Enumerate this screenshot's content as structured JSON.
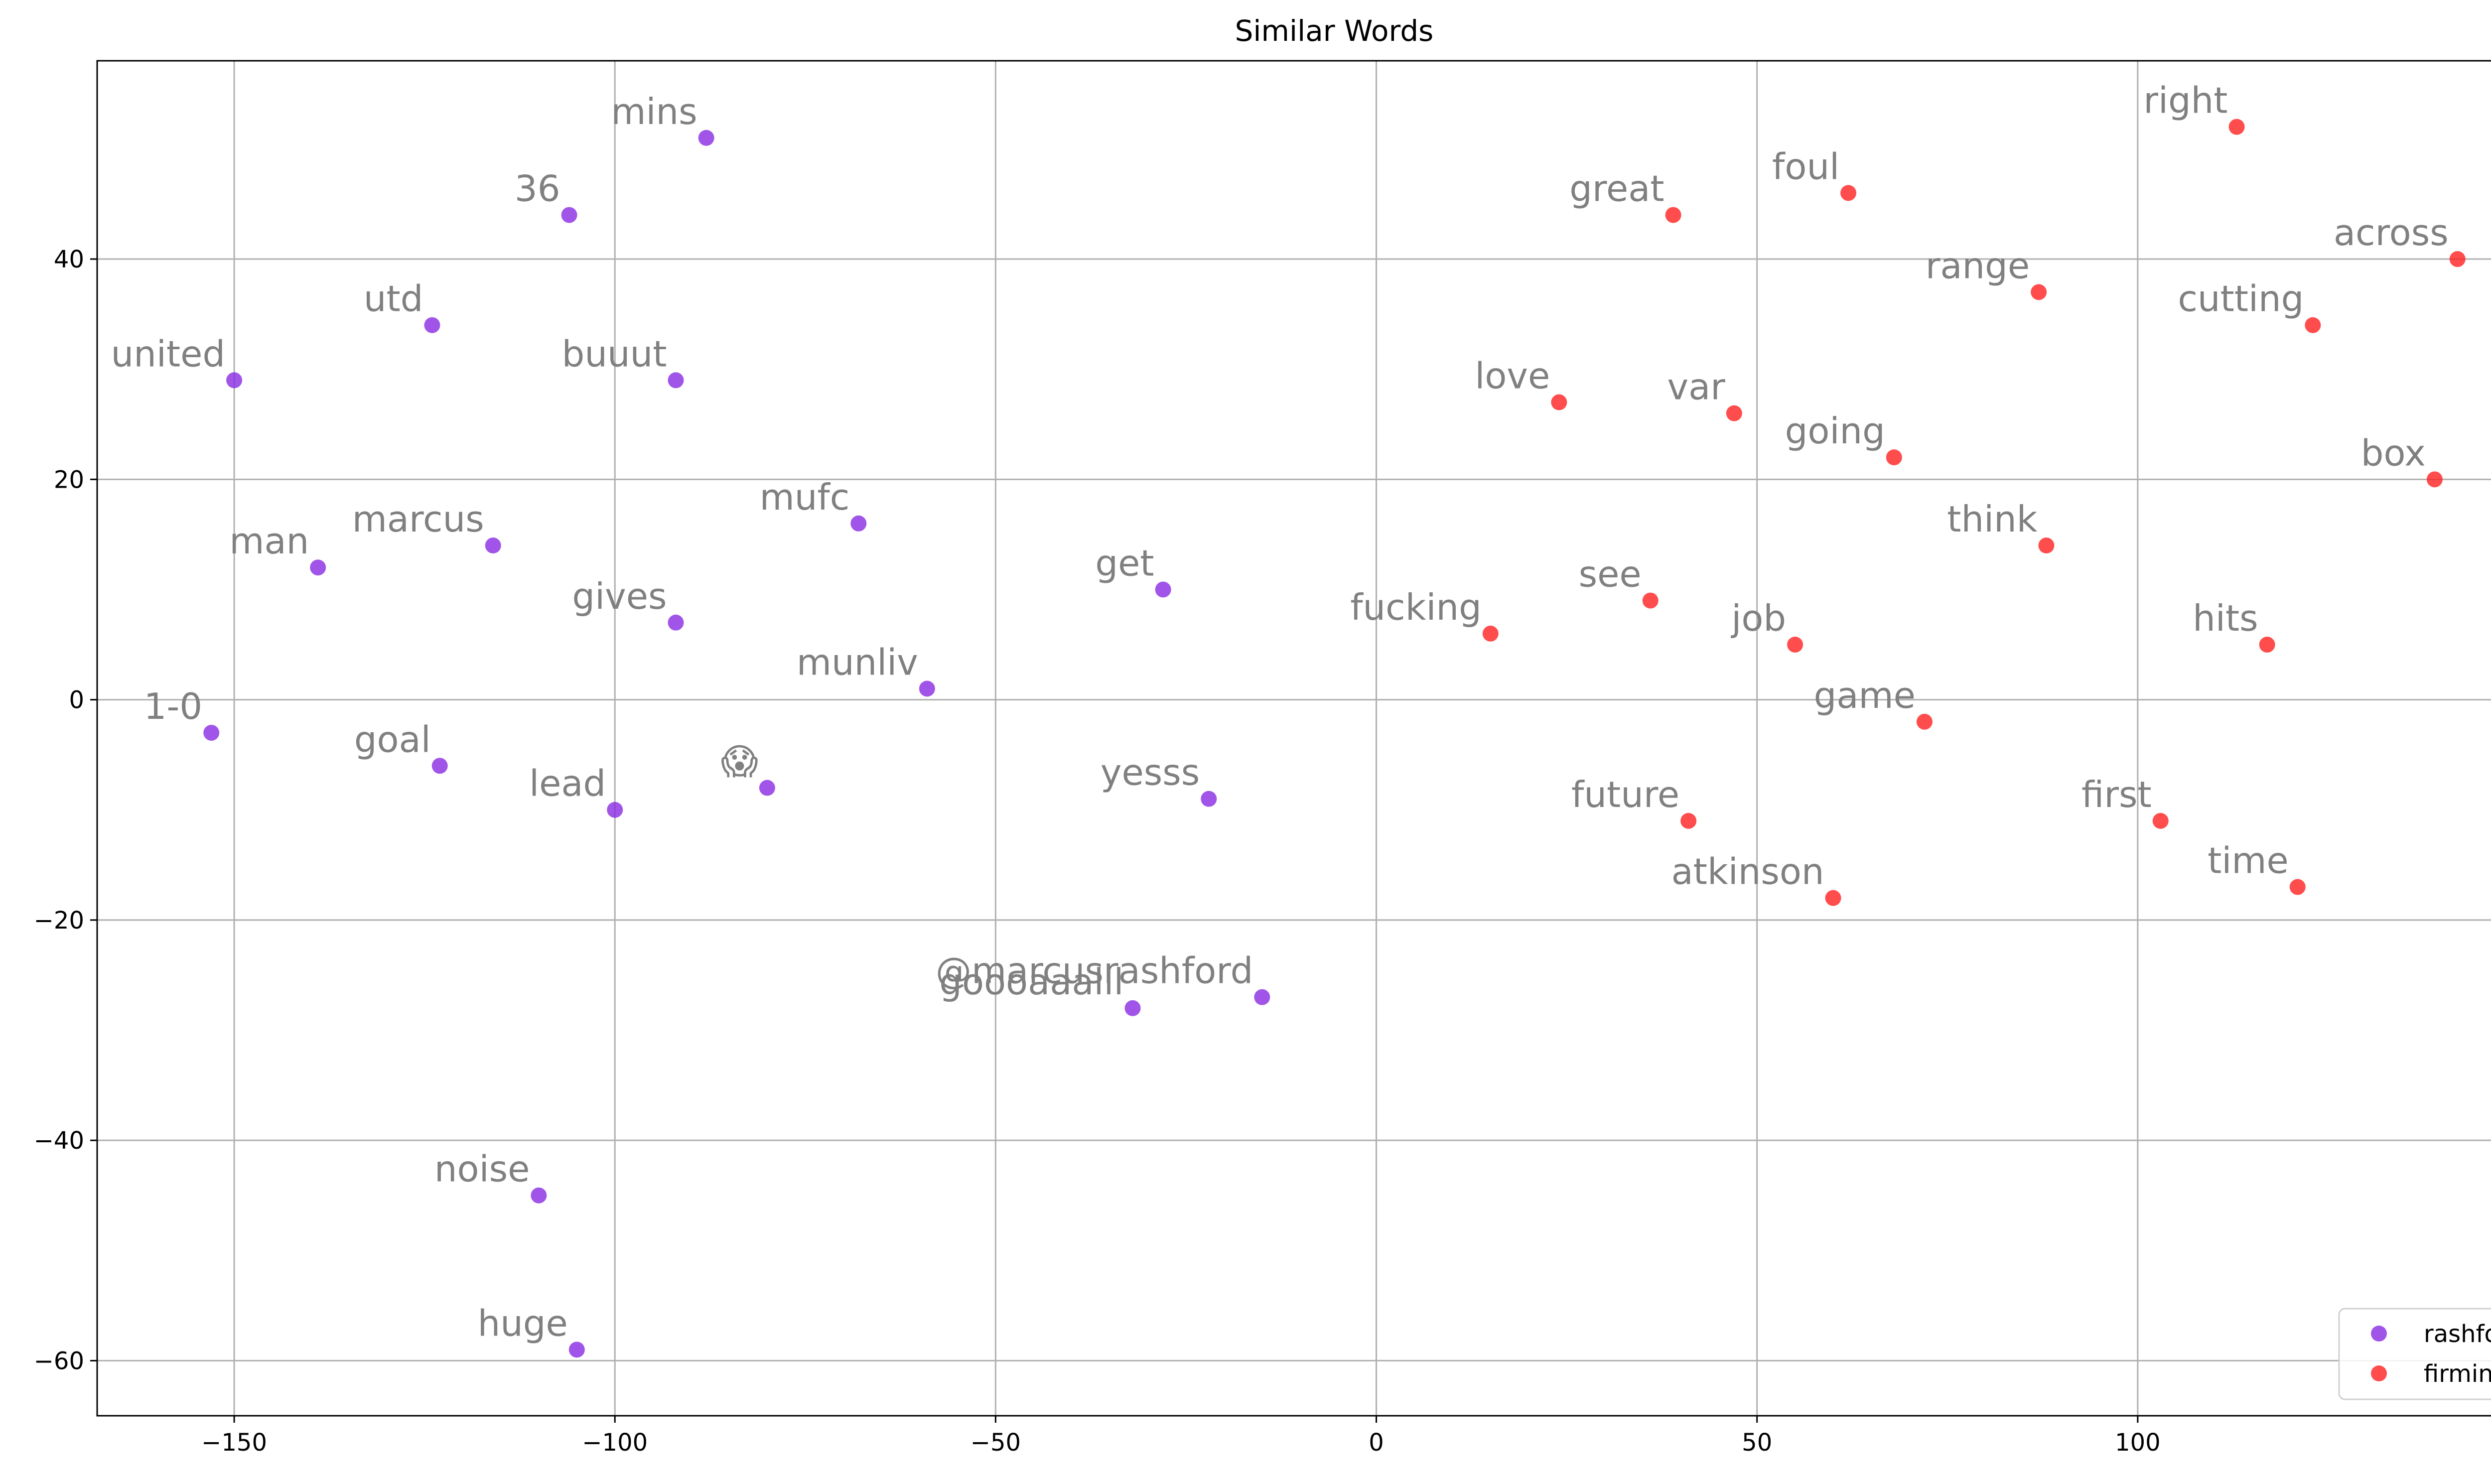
{
  "chart_data": {
    "type": "scatter",
    "title": "Similar Words",
    "xlabel": "",
    "ylabel": "",
    "xlim": [
      -168,
      157
    ],
    "ylim": [
      -65,
      58
    ],
    "xticks": [
      -150,
      -100,
      -50,
      0,
      50,
      100,
      150
    ],
    "yticks": [
      -60,
      -40,
      -20,
      0,
      20,
      40
    ],
    "grid": true,
    "legend_position": "lower-right",
    "series": [
      {
        "name": "rashford",
        "color": "#8a2be2",
        "points": [
          {
            "label": "mins",
            "x": -88,
            "y": 51
          },
          {
            "label": "36",
            "x": -106,
            "y": 44
          },
          {
            "label": "utd",
            "x": -124,
            "y": 34
          },
          {
            "label": "united",
            "x": -150,
            "y": 29
          },
          {
            "label": "buuut",
            "x": -92,
            "y": 29
          },
          {
            "label": "mufc",
            "x": -68,
            "y": 16
          },
          {
            "label": "marcus",
            "x": -116,
            "y": 14
          },
          {
            "label": "man",
            "x": -139,
            "y": 12
          },
          {
            "label": "get",
            "x": -28,
            "y": 10
          },
          {
            "label": "gives",
            "x": -92,
            "y": 7
          },
          {
            "label": "munliv",
            "x": -59,
            "y": 1
          },
          {
            "label": "1-0",
            "x": -153,
            "y": -3
          },
          {
            "label": "goal",
            "x": -123,
            "y": -6
          },
          {
            "label": "😱",
            "x": -80,
            "y": -8
          },
          {
            "label": "yesss",
            "x": -22,
            "y": -9
          },
          {
            "label": "lead",
            "x": -100,
            "y": -10
          },
          {
            "label": "@marcusrashford",
            "x": -15,
            "y": -27
          },
          {
            "label": "goooaaalll",
            "x": -32,
            "y": -28
          },
          {
            "label": "noise",
            "x": -110,
            "y": -45
          },
          {
            "label": "huge",
            "x": -105,
            "y": -59
          }
        ]
      },
      {
        "name": "firmino",
        "color": "#ff2020",
        "points": [
          {
            "label": "right",
            "x": 113,
            "y": 52
          },
          {
            "label": "foul",
            "x": 62,
            "y": 46
          },
          {
            "label": "great",
            "x": 39,
            "y": 44
          },
          {
            "label": "across",
            "x": 142,
            "y": 40
          },
          {
            "label": "range",
            "x": 87,
            "y": 37
          },
          {
            "label": "cutting",
            "x": 123,
            "y": 34
          },
          {
            "label": "love",
            "x": 24,
            "y": 27
          },
          {
            "label": "var",
            "x": 47,
            "y": 26
          },
          {
            "label": "going",
            "x": 68,
            "y": 22
          },
          {
            "label": "box",
            "x": 139,
            "y": 20
          },
          {
            "label": "think",
            "x": 88,
            "y": 14
          },
          {
            "label": "see",
            "x": 36,
            "y": 9
          },
          {
            "label": "fucking",
            "x": 15,
            "y": 6
          },
          {
            "label": "job",
            "x": 55,
            "y": 5
          },
          {
            "label": "hits",
            "x": 117,
            "y": 5
          },
          {
            "label": "game",
            "x": 72,
            "y": -2
          },
          {
            "label": "future",
            "x": 41,
            "y": -11
          },
          {
            "label": "first",
            "x": 103,
            "y": -11
          },
          {
            "label": "time",
            "x": 121,
            "y": -17
          },
          {
            "label": "atkinson",
            "x": 60,
            "y": -18
          }
        ]
      }
    ]
  }
}
